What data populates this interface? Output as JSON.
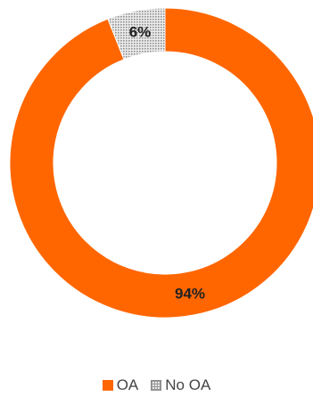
{
  "chart_data": {
    "type": "pie",
    "donut": true,
    "title": "",
    "categories": [
      "OA",
      "No OA"
    ],
    "values": [
      94,
      6
    ],
    "labels": [
      "94%",
      "6%"
    ],
    "colors": [
      "#ff6600",
      "#d9d9d9"
    ],
    "patterns": [
      "solid",
      "dotted-grid"
    ],
    "legend_position": "bottom",
    "start_angle_deg": 0,
    "direction": "clockwise"
  },
  "legend": {
    "items": [
      {
        "label": "OA"
      },
      {
        "label": "No OA"
      }
    ]
  }
}
